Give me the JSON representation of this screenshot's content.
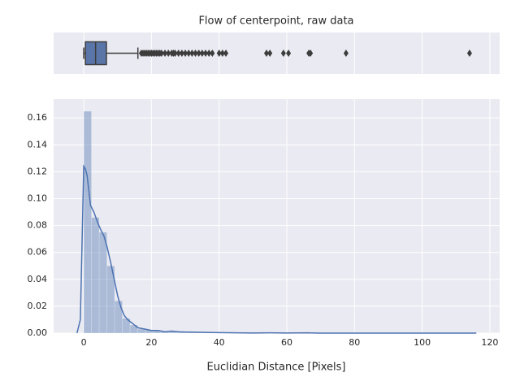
{
  "chart_data": [
    {
      "type": "box",
      "title": "Flow of centerpoint, raw data",
      "color": "#5a76a8",
      "xlim": [
        -8.9,
        122.9
      ],
      "xticks": [
        0,
        20,
        40,
        60,
        80,
        100,
        120
      ],
      "grid": true,
      "stats": {
        "whislo": 0,
        "q1": 0.5,
        "med": 3.5,
        "q3": 6.7,
        "whishi": 16,
        "fliers": [
          17,
          17.5,
          18,
          18.5,
          19,
          19.5,
          20,
          20.5,
          21,
          21.5,
          22,
          22.5,
          23,
          24,
          25,
          26,
          26.5,
          27,
          28,
          29,
          30,
          31,
          32,
          33,
          34,
          35,
          36,
          37,
          38,
          40,
          41,
          42,
          54,
          55,
          59,
          60.5,
          66.5,
          67,
          77.5,
          114
        ]
      }
    },
    {
      "type": "histogram",
      "xlabel": "Euclidian Distance [Pixels]",
      "color": "#4c72b0",
      "xlim": [
        -8.9,
        122.9
      ],
      "xticks": [
        0,
        20,
        40,
        60,
        80,
        100,
        120
      ],
      "ylim": [
        0,
        0.174
      ],
      "yticks": [
        {
          "value": 0,
          "label": "0.00"
        },
        {
          "value": 0.02,
          "label": "0.02"
        },
        {
          "value": 0.04,
          "label": "0.04"
        },
        {
          "value": 0.06,
          "label": "0.06"
        },
        {
          "value": 0.08,
          "label": "0.08"
        },
        {
          "value": 0.1,
          "label": "0.10"
        },
        {
          "value": 0.12,
          "label": "0.12"
        },
        {
          "value": 0.14,
          "label": "0.14"
        },
        {
          "value": 0.16,
          "label": "0.16"
        }
      ],
      "grid": true,
      "bins": [
        0,
        2.28,
        4.56,
        6.84,
        9.12,
        11.4,
        13.68,
        15.96,
        18.24,
        20.52,
        22.8,
        25.08,
        27.36,
        29.64,
        31.92,
        34.2,
        36.48,
        38.76,
        41.04,
        43.32,
        45.6,
        47.88,
        50.16,
        52.44,
        54.72,
        57,
        59.28,
        61.56,
        63.84,
        66.12,
        68.4,
        70.68,
        72.96,
        75.24,
        77.52,
        79.8,
        82.08,
        84.36,
        86.64,
        88.92,
        91.2,
        93.48,
        95.76,
        98.04,
        100.32,
        102.6,
        104.88,
        107.16,
        109.44,
        111.72,
        114
      ],
      "counts": [
        0.165,
        0.086,
        0.075,
        0.05,
        0.024,
        0.011,
        0.006,
        0.003,
        0.0025,
        0.002,
        0.0015,
        0.001,
        0.0008,
        0.0006,
        0.0005,
        0.0004,
        0.0003,
        0.0003,
        0.0002,
        0,
        0,
        0,
        0,
        0.0001,
        0.0001,
        0,
        0,
        0.0001,
        0,
        0.0001,
        0,
        0,
        0,
        0.0001,
        0,
        0,
        0,
        0,
        0,
        0,
        0,
        0,
        0,
        0,
        0,
        0,
        0,
        0,
        0,
        0.0001
      ],
      "kde": {
        "x": [
          -2,
          -1,
          0,
          0.5,
          1,
          2,
          3,
          4,
          5,
          6,
          7,
          8,
          9,
          10,
          11,
          12,
          13,
          14,
          15,
          16,
          18,
          20,
          22,
          24,
          26,
          28,
          30,
          35,
          40,
          45,
          50,
          55,
          60,
          66,
          70,
          80,
          100,
          116
        ],
        "y": [
          0,
          0.01,
          0.124,
          0.122,
          0.117,
          0.095,
          0.09,
          0.083,
          0.077,
          0.072,
          0.063,
          0.052,
          0.04,
          0.028,
          0.019,
          0.013,
          0.01,
          0.008,
          0.006,
          0.004,
          0.003,
          0.002,
          0.002,
          0.001,
          0.0015,
          0.001,
          0.0008,
          0.0006,
          0.0004,
          0.0002,
          0.0001,
          0.0002,
          0.0001,
          0.0002,
          0,
          0,
          0,
          0
        ]
      }
    }
  ]
}
